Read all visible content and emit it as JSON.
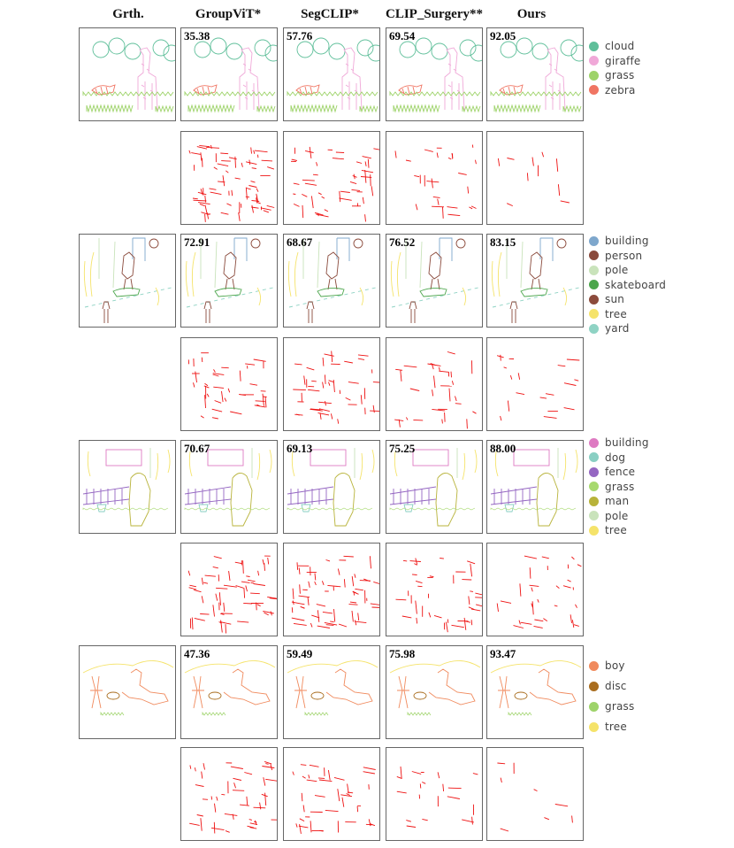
{
  "headers": [
    "Grth.",
    "GroupViT*",
    "SegCLIP*",
    "CLIP_Surgery**",
    "Ours"
  ],
  "scenes": [
    {
      "id": "giraffe",
      "scores": [
        "35.38",
        "57.76",
        "69.54",
        "92.05"
      ],
      "legend": [
        {
          "label": "cloud",
          "color": "#5fbf9a"
        },
        {
          "label": "giraffe",
          "color": "#f0a8d8"
        },
        {
          "label": "grass",
          "color": "#9ed36a"
        },
        {
          "label": "zebra",
          "color": "#f07563"
        }
      ]
    },
    {
      "id": "skateboard",
      "scores": [
        "72.91",
        "68.67",
        "76.52",
        "83.15"
      ],
      "legend": [
        {
          "label": "building",
          "color": "#7ea7cc"
        },
        {
          "label": "person",
          "color": "#8a4a3c"
        },
        {
          "label": "pole",
          "color": "#c9e3bb"
        },
        {
          "label": "skateboard",
          "color": "#4ca64c"
        },
        {
          "label": "sun",
          "color": "#8c4b3c"
        },
        {
          "label": "tree",
          "color": "#f5e36a"
        },
        {
          "label": "yard",
          "color": "#8fd3c4"
        }
      ]
    },
    {
      "id": "man",
      "scores": [
        "70.67",
        "69.13",
        "75.25",
        "88.00"
      ],
      "legend": [
        {
          "label": "building",
          "color": "#de7ac2"
        },
        {
          "label": "dog",
          "color": "#89cfc3"
        },
        {
          "label": "fence",
          "color": "#9567c2"
        },
        {
          "label": "grass",
          "color": "#a7d96e"
        },
        {
          "label": "man",
          "color": "#b8b33a"
        },
        {
          "label": "pole",
          "color": "#c9e3bb"
        },
        {
          "label": "tree",
          "color": "#f5e36a"
        }
      ]
    },
    {
      "id": "boy",
      "scores": [
        "47.36",
        "59.49",
        "75.98",
        "93.47"
      ],
      "legend": [
        {
          "label": "boy",
          "color": "#f08a5d"
        },
        {
          "label": "disc",
          "color": "#a96d1f"
        },
        {
          "label": "grass",
          "color": "#9ed36a"
        },
        {
          "label": "tree",
          "color": "#f5e36a"
        }
      ]
    }
  ]
}
